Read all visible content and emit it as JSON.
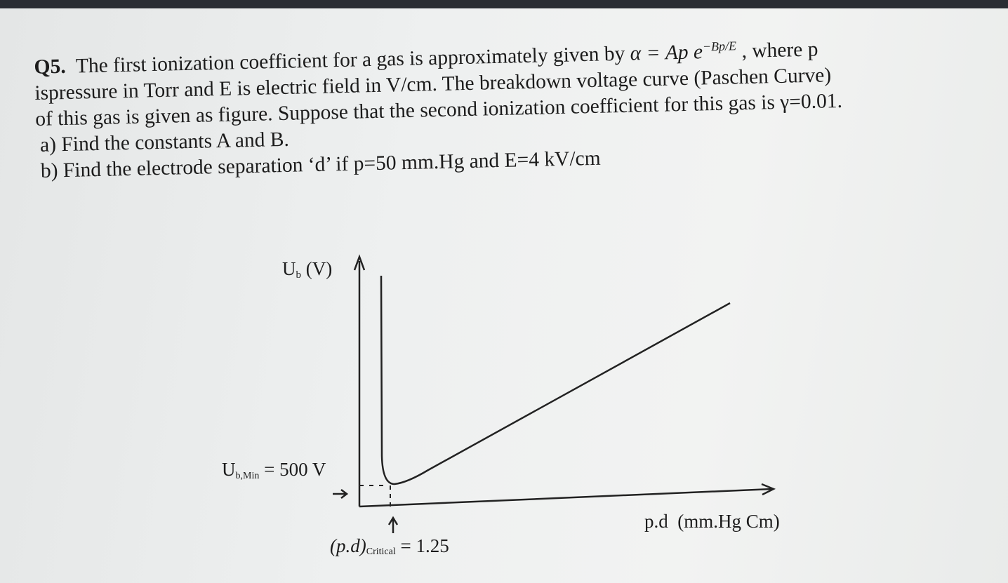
{
  "question": {
    "label": "Q5.",
    "line1": {
      "text": "The first ionization coefficient for a gas is approximately given by ",
      "formula": "α = Ap e",
      "exponent": "−Bp/E",
      "tail": " , where p"
    },
    "line2": "ispressure in Torr and E is electric field in V/cm. The breakdown voltage curve (Paschen Curve)",
    "line3": "of this gas is given as figure. Suppose that the second ionization coefficient for this gas is γ=0.01."
  },
  "parts": [
    {
      "label": "a)",
      "text": "Find the constants A and B."
    },
    {
      "label": "b)",
      "text": "Find the electrode separation ‘d’ if p=50 mm.Hg and E=4 kV/cm"
    }
  ],
  "figure": {
    "y_axis_label": {
      "main": "U",
      "sub": "b",
      "unit": " (V)"
    },
    "min_label": {
      "main": "U",
      "sub": "b,Min",
      "rest": " = 500 V"
    },
    "critical_label": {
      "main": "(p.d)",
      "sub": "Critical",
      "rest": " = 1.25"
    },
    "x_axis_label": "p.d  (mm.Hg Cm)"
  }
}
